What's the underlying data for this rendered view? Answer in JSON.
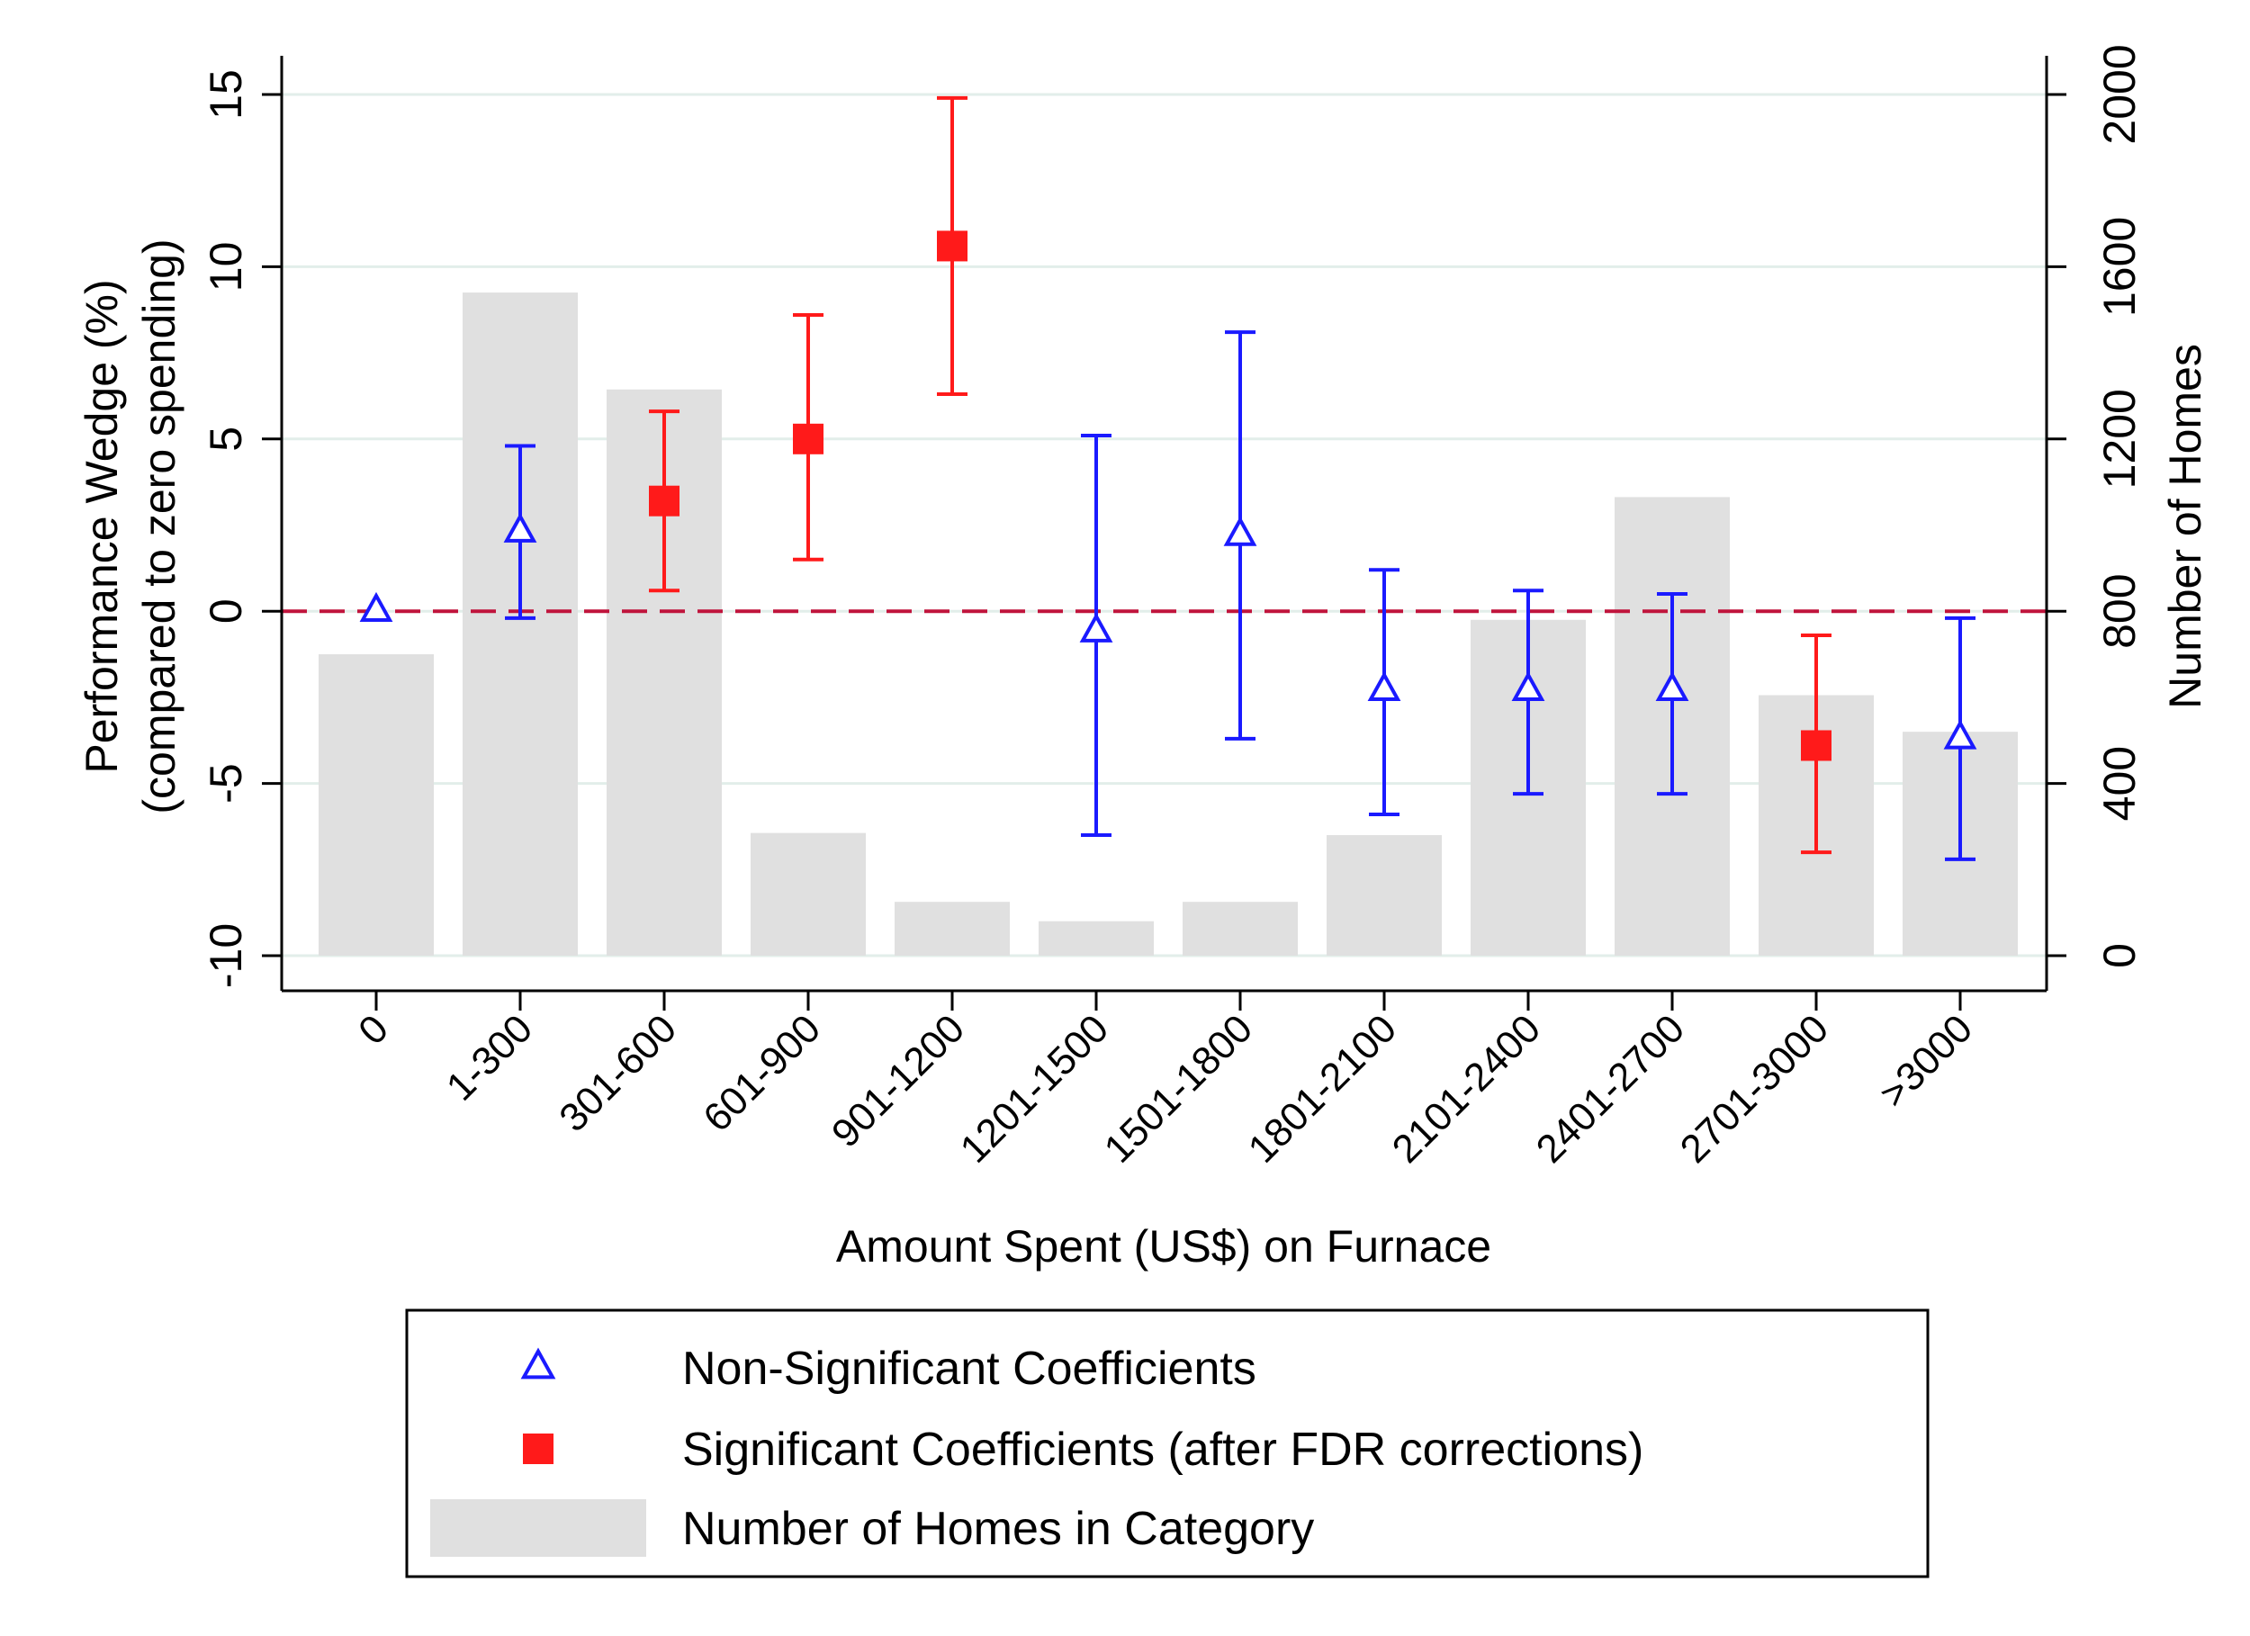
{
  "chart_data": {
    "type": "bar",
    "categories": [
      "0",
      "1-300",
      "301-600",
      "601-900",
      "901-1200",
      "1201-1500",
      "1501-1800",
      "1801-2100",
      "2101-2400",
      "2401-2700",
      "2701-3000",
      ">3000"
    ],
    "xlabel": "Amount Spent (US$) on Furnace",
    "ylabel": [
      "Performance Wedge (%)",
      "(compared to zero spending)"
    ],
    "ylabel_right": "Number of Homes",
    "ylim": [
      -10,
      15
    ],
    "yticks": [
      -10,
      -5,
      0,
      5,
      10,
      15
    ],
    "ylim_right": [
      0,
      2000
    ],
    "yticks_right": [
      0,
      400,
      800,
      1200,
      1600,
      2000
    ],
    "grid": true,
    "reference_line": {
      "y": 0,
      "style": "dashed",
      "color": "#c0143c"
    },
    "bars": {
      "name": "Number of Homes in Category",
      "axis": "right",
      "color": "#e0e0e0",
      "values": [
        700,
        1540,
        1315,
        285,
        125,
        80,
        125,
        280,
        780,
        1065,
        605,
        520
      ]
    },
    "coefficients": {
      "estimate": [
        0,
        2.3,
        3.2,
        5.0,
        10.6,
        -0.6,
        2.2,
        -2.3,
        -2.3,
        -2.3,
        -3.9,
        -3.7
      ],
      "ci_low": [
        null,
        -0.2,
        0.6,
        1.5,
        6.3,
        -6.5,
        -3.7,
        -5.9,
        -5.3,
        -5.3,
        -7.0,
        -7.2
      ],
      "ci_high": [
        null,
        4.8,
        5.8,
        8.6,
        14.9,
        5.1,
        8.1,
        1.2,
        0.6,
        0.5,
        -0.7,
        -0.2
      ],
      "significant": [
        false,
        false,
        true,
        true,
        true,
        false,
        false,
        false,
        false,
        false,
        true,
        false
      ]
    },
    "legend": {
      "placement": "bottom",
      "items": [
        {
          "name": "Non-Significant Coefficients",
          "marker": "hollow-triangle",
          "color": "#1a1aff"
        },
        {
          "name": "Significant Coefficients (after FDR corrections)",
          "marker": "filled-square",
          "color": "#ff1a1a"
        },
        {
          "name": "Number of Homes in Category",
          "marker": "bar",
          "color": "#e0e0e0"
        }
      ]
    },
    "colors": {
      "nonsig": "#1a1aff",
      "sig": "#ff1a1a",
      "bar": "#e0e0e0",
      "grid": "#e2eeea"
    }
  }
}
